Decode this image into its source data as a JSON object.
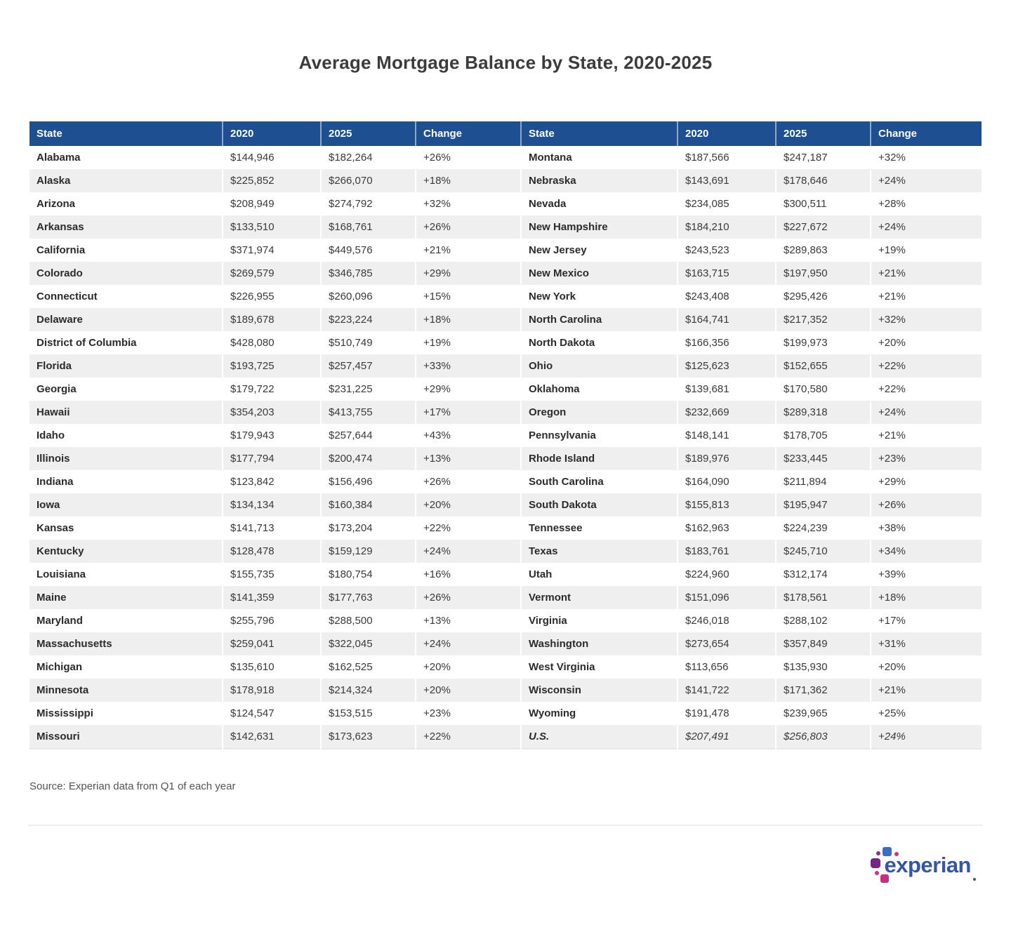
{
  "page": {
    "title": "Average Mortgage Balance by State, 2020-2025",
    "source_note": "Source: Experian data from Q1 of each year",
    "logo_text": "experian"
  },
  "colors": {
    "header_bg": "#1d4f91",
    "row_stripe": "#efefef",
    "text_dark": "#3a3a3a",
    "state_text": "#2b2b2b",
    "title_color": "#3c3c3c",
    "source_color": "#545454",
    "divider_color": "#ededed",
    "logo_word": "#3556a7"
  },
  "chart_data": {
    "type": "table",
    "title": "Average Mortgage Balance by State, 2020-2025",
    "columns": [
      "State",
      "2020",
      "2025",
      "Change"
    ],
    "value_format": "usd",
    "left": [
      {
        "state": "Alabama",
        "v2020": 144946,
        "v2025": 182264,
        "change_pct": 26
      },
      {
        "state": "Alaska",
        "v2020": 225852,
        "v2025": 266070,
        "change_pct": 18
      },
      {
        "state": "Arizona",
        "v2020": 208949,
        "v2025": 274792,
        "change_pct": 32
      },
      {
        "state": "Arkansas",
        "v2020": 133510,
        "v2025": 168761,
        "change_pct": 26
      },
      {
        "state": "California",
        "v2020": 371974,
        "v2025": 449576,
        "change_pct": 21
      },
      {
        "state": "Colorado",
        "v2020": 269579,
        "v2025": 346785,
        "change_pct": 29
      },
      {
        "state": "Connecticut",
        "v2020": 226955,
        "v2025": 260096,
        "change_pct": 15
      },
      {
        "state": "Delaware",
        "v2020": 189678,
        "v2025": 223224,
        "change_pct": 18
      },
      {
        "state": "District of Columbia",
        "v2020": 428080,
        "v2025": 510749,
        "change_pct": 19
      },
      {
        "state": "Florida",
        "v2020": 193725,
        "v2025": 257457,
        "change_pct": 33
      },
      {
        "state": "Georgia",
        "v2020": 179722,
        "v2025": 231225,
        "change_pct": 29
      },
      {
        "state": "Hawaii",
        "v2020": 354203,
        "v2025": 413755,
        "change_pct": 17
      },
      {
        "state": "Idaho",
        "v2020": 179943,
        "v2025": 257644,
        "change_pct": 43
      },
      {
        "state": "Illinois",
        "v2020": 177794,
        "v2025": 200474,
        "change_pct": 13
      },
      {
        "state": "Indiana",
        "v2020": 123842,
        "v2025": 156496,
        "change_pct": 26
      },
      {
        "state": "Iowa",
        "v2020": 134134,
        "v2025": 160384,
        "change_pct": 20
      },
      {
        "state": "Kansas",
        "v2020": 141713,
        "v2025": 173204,
        "change_pct": 22
      },
      {
        "state": "Kentucky",
        "v2020": 128478,
        "v2025": 159129,
        "change_pct": 24
      },
      {
        "state": "Louisiana",
        "v2020": 155735,
        "v2025": 180754,
        "change_pct": 16
      },
      {
        "state": "Maine",
        "v2020": 141359,
        "v2025": 177763,
        "change_pct": 26
      },
      {
        "state": "Maryland",
        "v2020": 255796,
        "v2025": 288500,
        "change_pct": 13
      },
      {
        "state": "Massachusetts",
        "v2020": 259041,
        "v2025": 322045,
        "change_pct": 24
      },
      {
        "state": "Michigan",
        "v2020": 135610,
        "v2025": 162525,
        "change_pct": 20
      },
      {
        "state": "Minnesota",
        "v2020": 178918,
        "v2025": 214324,
        "change_pct": 20
      },
      {
        "state": "Mississippi",
        "v2020": 124547,
        "v2025": 153515,
        "change_pct": 23
      },
      {
        "state": "Missouri",
        "v2020": 142631,
        "v2025": 173623,
        "change_pct": 22
      }
    ],
    "right": [
      {
        "state": "Montana",
        "v2020": 187566,
        "v2025": 247187,
        "change_pct": 32
      },
      {
        "state": "Nebraska",
        "v2020": 143691,
        "v2025": 178646,
        "change_pct": 24
      },
      {
        "state": "Nevada",
        "v2020": 234085,
        "v2025": 300511,
        "change_pct": 28
      },
      {
        "state": "New Hampshire",
        "v2020": 184210,
        "v2025": 227672,
        "change_pct": 24
      },
      {
        "state": "New Jersey",
        "v2020": 243523,
        "v2025": 289863,
        "change_pct": 19
      },
      {
        "state": "New Mexico",
        "v2020": 163715,
        "v2025": 197950,
        "change_pct": 21
      },
      {
        "state": "New York",
        "v2020": 243408,
        "v2025": 295426,
        "change_pct": 21
      },
      {
        "state": "North Carolina",
        "v2020": 164741,
        "v2025": 217352,
        "change_pct": 32
      },
      {
        "state": "North Dakota",
        "v2020": 166356,
        "v2025": 199973,
        "change_pct": 20
      },
      {
        "state": "Ohio",
        "v2020": 125623,
        "v2025": 152655,
        "change_pct": 22
      },
      {
        "state": "Oklahoma",
        "v2020": 139681,
        "v2025": 170580,
        "change_pct": 22
      },
      {
        "state": "Oregon",
        "v2020": 232669,
        "v2025": 289318,
        "change_pct": 24
      },
      {
        "state": "Pennsylvania",
        "v2020": 148141,
        "v2025": 178705,
        "change_pct": 21
      },
      {
        "state": "Rhode Island",
        "v2020": 189976,
        "v2025": 233445,
        "change_pct": 23
      },
      {
        "state": "South Carolina",
        "v2020": 164090,
        "v2025": 211894,
        "change_pct": 29
      },
      {
        "state": "South Dakota",
        "v2020": 155813,
        "v2025": 195947,
        "change_pct": 26
      },
      {
        "state": "Tennessee",
        "v2020": 162963,
        "v2025": 224239,
        "change_pct": 38
      },
      {
        "state": "Texas",
        "v2020": 183761,
        "v2025": 245710,
        "change_pct": 34
      },
      {
        "state": "Utah",
        "v2020": 224960,
        "v2025": 312174,
        "change_pct": 39
      },
      {
        "state": "Vermont",
        "v2020": 151096,
        "v2025": 178561,
        "change_pct": 18
      },
      {
        "state": "Virginia",
        "v2020": 246018,
        "v2025": 288102,
        "change_pct": 17
      },
      {
        "state": "Washington",
        "v2020": 273654,
        "v2025": 357849,
        "change_pct": 31
      },
      {
        "state": "West Virginia",
        "v2020": 113656,
        "v2025": 135930,
        "change_pct": 20
      },
      {
        "state": "Wisconsin",
        "v2020": 141722,
        "v2025": 171362,
        "change_pct": 21
      },
      {
        "state": "Wyoming",
        "v2020": 191478,
        "v2025": 239965,
        "change_pct": 25
      },
      {
        "state": "U.S.",
        "v2020": 207491,
        "v2025": 256803,
        "change_pct": 24,
        "italic": true
      }
    ]
  }
}
